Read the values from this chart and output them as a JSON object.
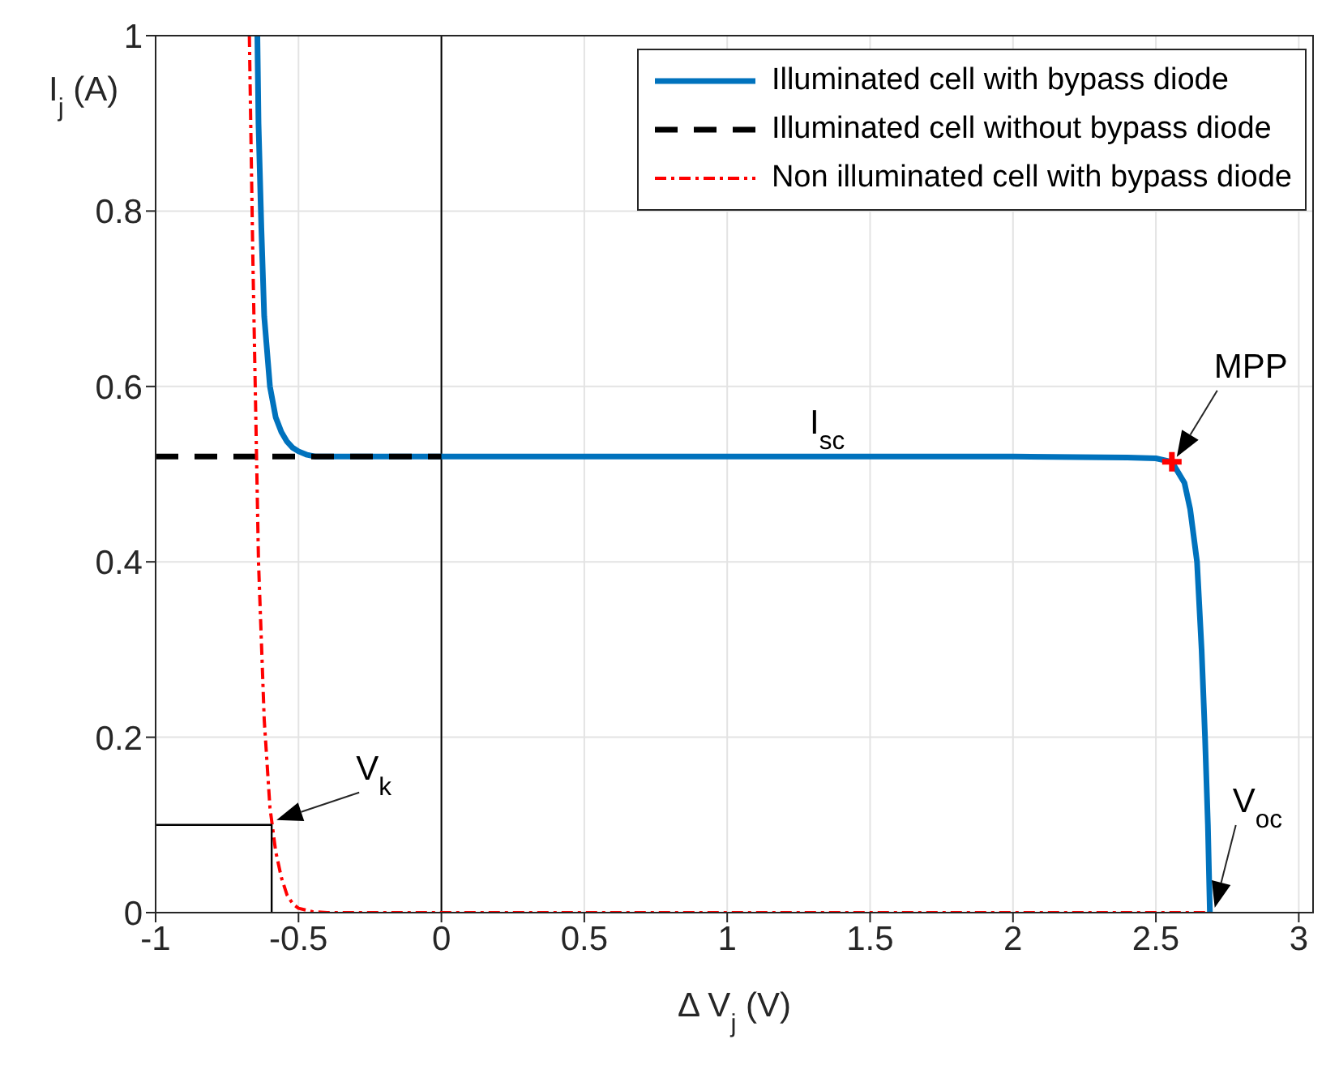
{
  "chart_data": {
    "type": "line",
    "xlabel": "Δ V$_{j}$ (V)",
    "ylabel": "I$_{j}$ (A)",
    "xlim": [
      -1,
      3.05
    ],
    "xticks": [
      -1,
      -0.5,
      0,
      0.5,
      1,
      1.5,
      2,
      2.5,
      3
    ],
    "ylim": [
      0,
      1
    ],
    "yticks": [
      0,
      0.2,
      0.4,
      0.6,
      0.8,
      1
    ],
    "grid": true,
    "legend": "top right",
    "series": [
      {
        "name": "Illuminated cell with bypass diode",
        "color": "#0072bd",
        "line_style": "solid",
        "x": [
          -0.644,
          -0.64,
          -0.63,
          -0.62,
          -0.6,
          -0.58,
          -0.56,
          -0.54,
          -0.52,
          -0.5,
          -0.47,
          -0.44,
          -0.4,
          0,
          1,
          2,
          2.4,
          2.5,
          2.556,
          2.6,
          2.62,
          2.644,
          2.66,
          2.672,
          2.682,
          2.689
        ],
        "values": [
          1,
          0.9,
          0.78,
          0.68,
          0.6,
          0.565,
          0.548,
          0.537,
          0.53,
          0.526,
          0.522,
          0.52,
          0.52,
          0.52,
          0.52,
          0.52,
          0.519,
          0.518,
          0.514,
          0.49,
          0.46,
          0.4,
          0.3,
          0.2,
          0.1,
          0
        ]
      },
      {
        "name": "Illuminated cell without bypass diode",
        "color": "#000000",
        "line_style": "dashed",
        "x": [
          -1,
          0
        ],
        "values": [
          0.52,
          0.52
        ]
      },
      {
        "name": "Non illuminated cell with bypass diode",
        "color": "#ff0000",
        "line_style": "dashdot",
        "x": [
          -0.672,
          -0.66,
          -0.64,
          -0.62,
          -0.6,
          -0.58,
          -0.56,
          -0.54,
          -0.52,
          -0.5,
          -0.45,
          -0.4,
          0,
          2.69
        ],
        "values": [
          1,
          0.75,
          0.4,
          0.22,
          0.12,
          0.07,
          0.04,
          0.02,
          0.01,
          0.005,
          0.001,
          0,
          0,
          0
        ]
      },
      {
        "color": "#000000",
        "line_style": "solid",
        "x": [
          -1,
          -0.594,
          -0.594
        ],
        "values": [
          0.1,
          0.1,
          0
        ]
      },
      {
        "type": "scatter",
        "color": "#ff0000",
        "marker": "cross",
        "x": [
          2.556
        ],
        "values": [
          0.514
        ]
      }
    ],
    "ref_lines": [
      {
        "axis": "x",
        "value": 0,
        "color": "#000000"
      }
    ],
    "annotations": [
      {
        "text": "I$_{sc}$",
        "x": 1.35,
        "y": 0.52
      },
      {
        "text": "MPP",
        "x": 2.556,
        "y": 0.514
      },
      {
        "text": "V$_{k}$",
        "x": -0.594,
        "y": 0.1
      },
      {
        "text": "V$_{oc}$",
        "x": 2.689,
        "y": 0
      }
    ]
  }
}
